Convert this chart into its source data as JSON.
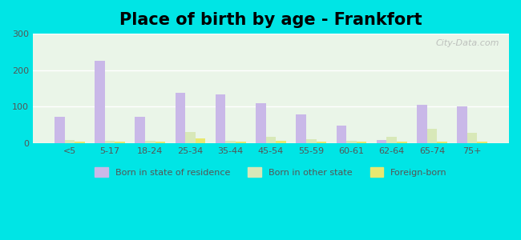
{
  "title": "Place of birth by age - Frankfort",
  "categories": [
    "<5",
    "5-17",
    "18-24",
    "25-34",
    "35-44",
    "45-54",
    "55-59",
    "60-61",
    "62-64",
    "65-74",
    "75+"
  ],
  "born_in_state": [
    72,
    225,
    72,
    138,
    133,
    110,
    78,
    48,
    8,
    105,
    100
  ],
  "born_other_state": [
    8,
    5,
    5,
    30,
    7,
    18,
    10,
    5,
    18,
    38,
    28
  ],
  "foreign_born": [
    3,
    3,
    3,
    12,
    4,
    5,
    4,
    3,
    3,
    3,
    3
  ],
  "bar_color_state": "#c9b8e8",
  "bar_color_other": "#d8e8b8",
  "bar_color_foreign": "#e8e870",
  "background_top": "#e8f5e8",
  "background_bottom": "#f5ffe8",
  "outer_bg": "#00e5e5",
  "ylim": [
    0,
    300
  ],
  "yticks": [
    0,
    100,
    200,
    300
  ],
  "title_fontsize": 15,
  "legend_labels": [
    "Born in state of residence",
    "Born in other state",
    "Foreign-born"
  ],
  "watermark": "City-Data.com"
}
